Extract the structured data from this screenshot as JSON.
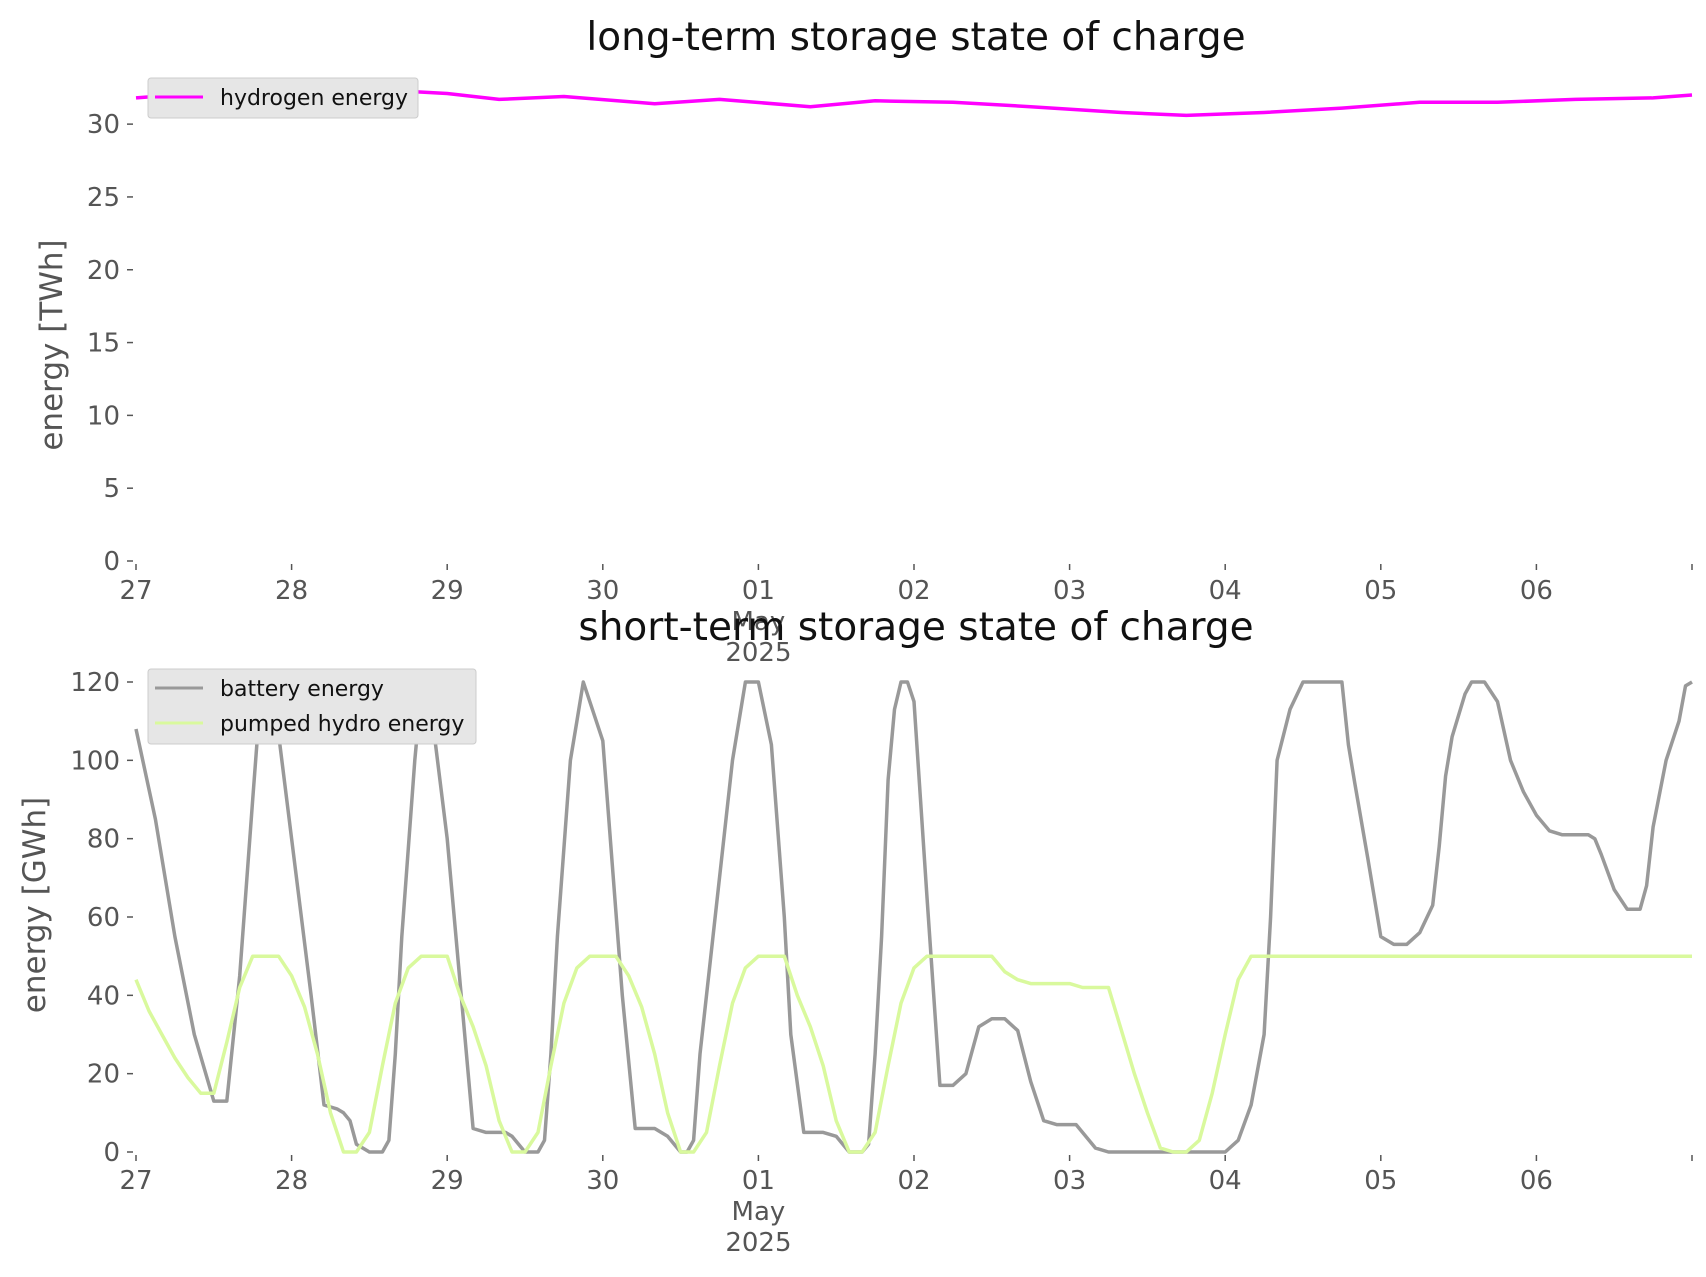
{
  "chart_data": [
    {
      "type": "line",
      "title": "long-term storage state of charge",
      "xlabel": "",
      "ylabel": "energy [TWh]",
      "ylim": [
        0,
        32
      ],
      "yticks": [
        0,
        5,
        10,
        15,
        20,
        25,
        30
      ],
      "xlim": [
        "2025-04-27",
        "2025-05-07"
      ],
      "xtick_labels": [
        "27",
        "28",
        "29",
        "30",
        "01\nMay\n2025",
        "02",
        "03",
        "04",
        "05",
        "06"
      ],
      "legend_position": "upper-left",
      "grid": false,
      "series": [
        {
          "name": "hydrogen energy",
          "color": "#ff00ff",
          "x": [
            "2025-04-27 00:00",
            "2025-04-27 12:00",
            "2025-04-28 00:00",
            "2025-04-28 12:00",
            "2025-04-29 00:00",
            "2025-04-29 08:00",
            "2025-04-29 18:00",
            "2025-04-30 08:00",
            "2025-04-30 18:00",
            "2025-05-01 08:00",
            "2025-05-01 18:00",
            "2025-05-02 06:00",
            "2025-05-02 18:00",
            "2025-05-03 08:00",
            "2025-05-03 18:00",
            "2025-05-04 06:00",
            "2025-05-04 18:00",
            "2025-05-05 06:00",
            "2025-05-05 18:00",
            "2025-05-06 06:00",
            "2025-05-06 18:00",
            "2025-05-07 00:00"
          ],
          "y": [
            31.8,
            32.2,
            32.5,
            32.4,
            32.1,
            31.7,
            31.9,
            31.4,
            31.7,
            31.2,
            31.6,
            31.5,
            31.2,
            30.8,
            30.6,
            30.8,
            31.1,
            31.5,
            31.5,
            31.7,
            31.8,
            32.0
          ]
        }
      ]
    },
    {
      "type": "line",
      "title": "short-term storage state of charge",
      "xlabel": "",
      "ylabel": "energy [GWh]",
      "ylim": [
        0,
        120
      ],
      "yticks": [
        0,
        20,
        40,
        60,
        80,
        100,
        120
      ],
      "xlim": [
        "2025-04-27",
        "2025-05-07"
      ],
      "xtick_labels": [
        "27",
        "28",
        "29",
        "30",
        "01\nMay\n2025",
        "02",
        "03",
        "04",
        "05",
        "06"
      ],
      "legend_position": "upper-left",
      "grid": false,
      "series": [
        {
          "name": "battery energy",
          "color": "#999999",
          "x_hours": [
            0,
            3,
            6,
            9,
            12,
            13,
            14,
            16,
            18,
            19,
            20,
            21,
            24,
            27,
            29,
            31,
            32,
            33,
            34,
            36,
            38,
            39,
            40,
            41,
            43,
            44,
            45,
            48,
            52,
            54,
            55,
            56,
            57,
            58,
            60,
            62,
            63,
            64,
            65,
            67,
            68,
            69,
            72,
            75,
            77,
            78,
            79,
            80,
            82,
            84,
            85,
            86,
            87,
            89,
            92,
            94,
            96,
            98,
            100,
            101,
            103,
            104,
            105,
            106,
            108,
            110,
            112,
            113,
            114,
            115,
            116,
            117,
            118,
            119,
            120,
            121,
            122,
            124,
            125,
            126,
            128,
            130,
            132,
            134,
            136,
            138,
            140,
            142,
            143,
            144,
            145,
            148,
            150,
            152,
            155,
            156,
            157,
            158,
            160,
            162,
            163,
            164,
            165,
            166,
            167,
            168,
            170,
            172,
            174,
            175,
            176,
            178,
            180,
            181,
            182,
            183,
            184,
            186,
            187,
            188,
            190,
            191,
            192,
            194,
            196,
            198,
            200,
            201,
            202,
            203,
            205,
            206,
            207,
            208,
            210,
            212,
            214,
            216,
            218,
            220,
            222,
            224,
            225,
            226,
            228,
            230,
            231,
            232,
            233,
            234,
            236,
            238,
            239,
            240
          ],
          "y": [
            108,
            85,
            55,
            30,
            13,
            13,
            13,
            45,
            90,
            112,
            120,
            120,
            80,
            40,
            12,
            11,
            10,
            8,
            2,
            0,
            0,
            3,
            25,
            55,
            100,
            118,
            120,
            80,
            6,
            5,
            5,
            5,
            5,
            4,
            0,
            0,
            3,
            25,
            55,
            100,
            110,
            120,
            105,
            40,
            6,
            6,
            6,
            6,
            4,
            0,
            0,
            3,
            25,
            55,
            100,
            120,
            120,
            104,
            60,
            30,
            5,
            5,
            5,
            5,
            4,
            0,
            0,
            2,
            25,
            55,
            95,
            113,
            120,
            120,
            115,
            90,
            65,
            17,
            17,
            17,
            20,
            32,
            34,
            34,
            31,
            18,
            8,
            7,
            7,
            7,
            7,
            1,
            0,
            0,
            0,
            0,
            0,
            0,
            0,
            0,
            0,
            0,
            0,
            0,
            0,
            0,
            3,
            12,
            30,
            60,
            100,
            113,
            120,
            120,
            120,
            120,
            120,
            120,
            104,
            94,
            75,
            65,
            55,
            53,
            53,
            56,
            63,
            78,
            96,
            106,
            117,
            120,
            120,
            120,
            115,
            100,
            92,
            86,
            82,
            81,
            81,
            81,
            80,
            76,
            67,
            62,
            62,
            62,
            68,
            83,
            100,
            110,
            119,
            120
          ],
          "note": "x_hours are hours after 2025-04-27 00:00"
        },
        {
          "name": "pumped hydro energy",
          "color": "#d9f99d",
          "x_hours": [
            0,
            2,
            4,
            6,
            8,
            10,
            12,
            14,
            16,
            18,
            20,
            22,
            24,
            26,
            28,
            30,
            32,
            34,
            36,
            38,
            40,
            42,
            44,
            46,
            48,
            50,
            52,
            54,
            56,
            58,
            60,
            62,
            64,
            66,
            68,
            70,
            72,
            74,
            76,
            78,
            80,
            82,
            84,
            86,
            88,
            90,
            92,
            94,
            96,
            98,
            100,
            102,
            104,
            106,
            108,
            110,
            112,
            114,
            116,
            118,
            120,
            122,
            124,
            126,
            128,
            130,
            132,
            134,
            136,
            138,
            140,
            142,
            144,
            146,
            148,
            150,
            152,
            154,
            156,
            158,
            160,
            162,
            164,
            166,
            168,
            170,
            172,
            174,
            176,
            178,
            180,
            182,
            184,
            186,
            188,
            190,
            192,
            194,
            196,
            198,
            200,
            202,
            204,
            206,
            208,
            210,
            212,
            214,
            216,
            218,
            220,
            222,
            224,
            226,
            228,
            230,
            232,
            234,
            236,
            238,
            240
          ],
          "y": [
            44,
            36,
            30,
            24,
            19,
            15,
            15,
            28,
            42,
            50,
            50,
            50,
            45,
            37,
            25,
            10,
            0,
            0,
            5,
            22,
            38,
            47,
            50,
            50,
            50,
            40,
            32,
            22,
            8,
            0,
            0,
            5,
            22,
            38,
            47,
            50,
            50,
            50,
            45,
            37,
            25,
            10,
            0,
            0,
            5,
            22,
            38,
            47,
            50,
            50,
            50,
            40,
            32,
            22,
            8,
            0,
            0,
            5,
            22,
            38,
            47,
            50,
            50,
            50,
            50,
            50,
            50,
            46,
            44,
            43,
            43,
            43,
            43,
            42,
            42,
            42,
            31,
            20,
            10,
            1,
            0,
            0,
            3,
            15,
            30,
            44,
            50,
            50,
            50,
            50,
            50,
            50,
            50,
            50,
            50,
            50,
            50,
            50,
            50,
            50,
            50,
            50,
            50,
            50,
            50,
            50,
            50,
            50,
            50,
            50,
            50,
            50,
            50,
            50,
            50,
            50,
            50,
            50,
            50,
            50,
            50
          ],
          "note": "x_hours are hours after 2025-04-27 00:00"
        }
      ]
    }
  ]
}
